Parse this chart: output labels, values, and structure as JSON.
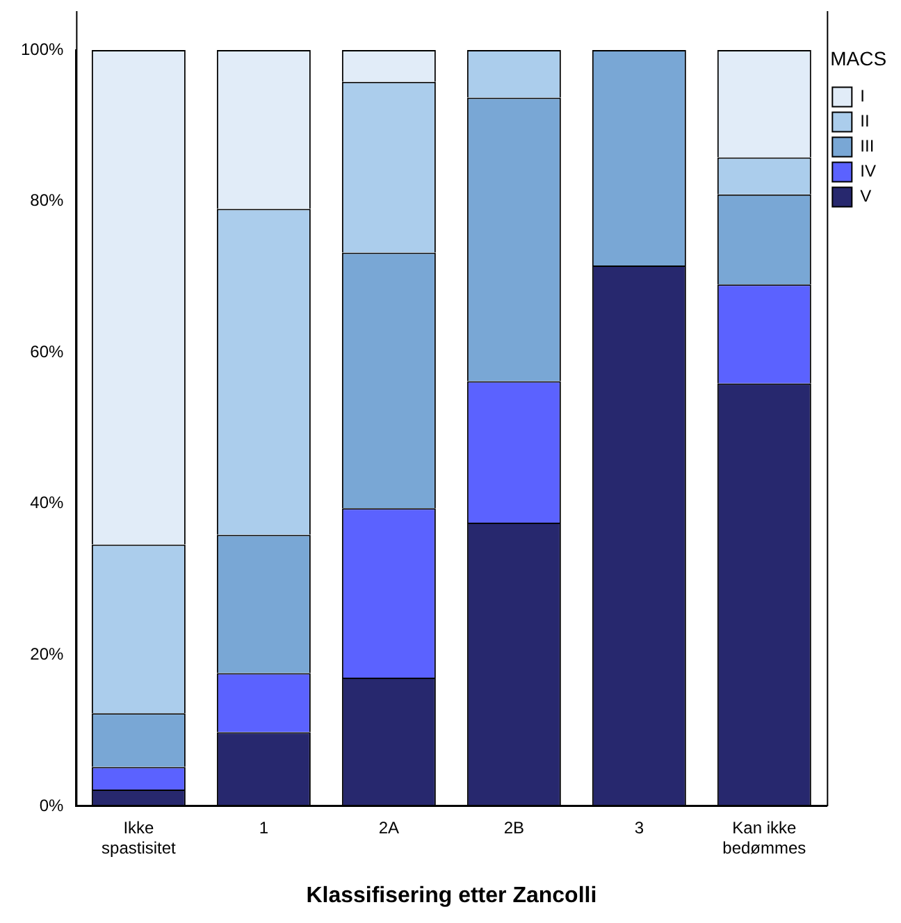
{
  "chart_data": {
    "type": "bar",
    "stacked": true,
    "xlabel": "Klassifisering etter Zancolli",
    "legend_title": "MACS",
    "legend": "top right",
    "grid": false,
    "categories": [
      "Ikke spastisitet",
      "1",
      "2A",
      "2B",
      "3",
      "Kan ikke bedømmes"
    ],
    "ylim": [
      0,
      100
    ],
    "yticks": [
      {
        "value": 0,
        "label": "0%"
      },
      {
        "value": 20,
        "label": "20%"
      },
      {
        "value": 40,
        "label": "40%"
      },
      {
        "value": 60,
        "label": "60%"
      },
      {
        "value": 80,
        "label": "80%"
      },
      {
        "value": 100,
        "label": "100%"
      }
    ],
    "series": [
      {
        "name": "V",
        "color": "#27286e",
        "values": [
          2.2,
          9.8,
          17.0,
          37.5,
          71.5,
          55.9
        ]
      },
      {
        "name": "IV",
        "color": "#5b62ff",
        "values": [
          3.0,
          7.8,
          22.4,
          18.7,
          0,
          13.1
        ]
      },
      {
        "name": "III",
        "color": "#79a7d5",
        "values": [
          7.1,
          18.3,
          33.8,
          37.5,
          28.5,
          11.9
        ]
      },
      {
        "name": "II",
        "color": "#abcdec",
        "values": [
          22.3,
          43.1,
          22.6,
          6.3,
          0,
          4.9
        ]
      },
      {
        "name": "I",
        "color": "#e1ecf8",
        "values": [
          65.4,
          21.0,
          4.2,
          0,
          0,
          14.2
        ]
      }
    ]
  }
}
